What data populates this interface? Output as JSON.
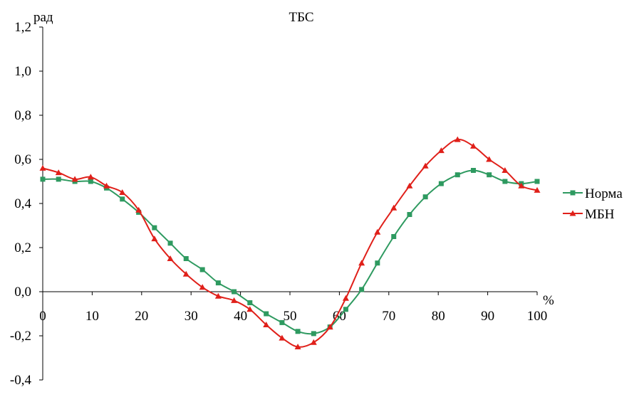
{
  "chart_data": {
    "type": "line",
    "title": "ТБС",
    "ylabel": "рад",
    "xlabel": "%",
    "xlim": [
      0,
      100
    ],
    "ylim": [
      -0.4,
      1.2
    ],
    "x_ticks": [
      0,
      10,
      20,
      30,
      40,
      50,
      60,
      70,
      80,
      90,
      100
    ],
    "x_tick_labels": [
      "0",
      "10",
      "20",
      "30",
      "40",
      "50",
      "60",
      "70",
      "80",
      "90",
      "100"
    ],
    "y_ticks": [
      -0.4,
      -0.2,
      0.0,
      0.2,
      0.4,
      0.6,
      0.8,
      1.0,
      1.2
    ],
    "y_tick_labels": [
      "-0,4",
      "-0,2",
      "0,0",
      "0,2",
      "0,4",
      "0,6",
      "0,8",
      "1,0",
      "1,2"
    ],
    "grid": false,
    "legend_position": "right",
    "series": [
      {
        "name": "Норма",
        "color": "#2e9a60",
        "marker": "square",
        "x": [
          0,
          3.2,
          6.5,
          9.7,
          12.9,
          16.1,
          19.4,
          22.6,
          25.8,
          29.0,
          32.3,
          35.5,
          38.7,
          41.9,
          45.2,
          48.4,
          51.6,
          54.8,
          58.1,
          61.3,
          64.5,
          67.7,
          71.0,
          74.2,
          77.4,
          80.6,
          83.9,
          87.1,
          90.3,
          93.5,
          96.8,
          100
        ],
        "values": [
          0.51,
          0.51,
          0.5,
          0.5,
          0.47,
          0.42,
          0.36,
          0.29,
          0.22,
          0.15,
          0.1,
          0.04,
          0.0,
          -0.05,
          -0.1,
          -0.14,
          -0.18,
          -0.19,
          -0.16,
          -0.08,
          0.01,
          0.13,
          0.25,
          0.35,
          0.43,
          0.49,
          0.53,
          0.55,
          0.53,
          0.5,
          0.49,
          0.5
        ]
      },
      {
        "name": "МБН",
        "color": "#e0201a",
        "marker": "triangle",
        "x": [
          0,
          3.2,
          6.5,
          9.7,
          12.9,
          16.1,
          19.4,
          22.6,
          25.8,
          29.0,
          32.3,
          35.5,
          38.7,
          41.9,
          45.2,
          48.4,
          51.6,
          54.8,
          58.1,
          61.3,
          64.5,
          67.7,
          71.0,
          74.2,
          77.4,
          80.6,
          83.9,
          87.1,
          90.3,
          93.5,
          96.8,
          100
        ],
        "values": [
          0.56,
          0.54,
          0.51,
          0.52,
          0.48,
          0.45,
          0.37,
          0.24,
          0.15,
          0.08,
          0.02,
          -0.02,
          -0.04,
          -0.08,
          -0.15,
          -0.21,
          -0.25,
          -0.23,
          -0.16,
          -0.03,
          0.13,
          0.27,
          0.38,
          0.48,
          0.57,
          0.64,
          0.69,
          0.66,
          0.6,
          0.55,
          0.48,
          0.46
        ]
      }
    ]
  }
}
